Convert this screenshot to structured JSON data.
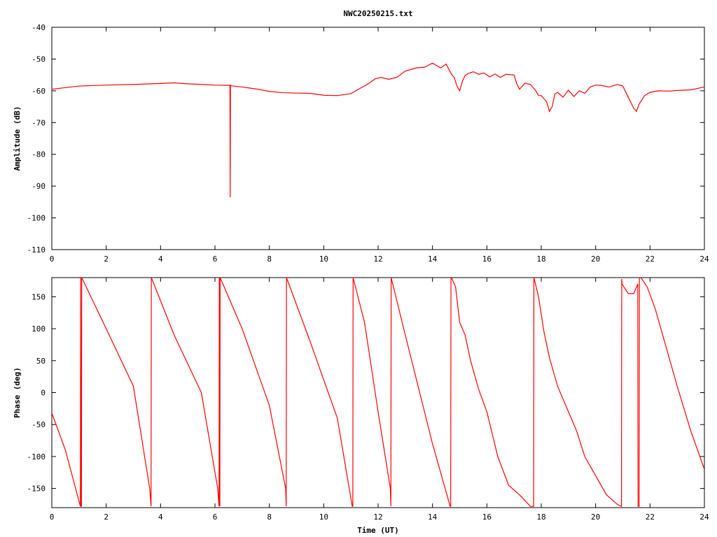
{
  "chart_data": [
    {
      "type": "line",
      "title": "NWC20250215.txt",
      "xlabel": "",
      "ylabel": "Amplitude (dB)",
      "xlim": [
        0,
        24
      ],
      "ylim": [
        -110,
        -40
      ],
      "xticks": [
        "0",
        "2",
        "4",
        "6",
        "8",
        "10",
        "12",
        "14",
        "16",
        "18",
        "20",
        "22",
        "24"
      ],
      "yticks": [
        "-40",
        "-50",
        "-60",
        "-70",
        "-80",
        "-90",
        "-100",
        "-110"
      ],
      "series_color": "#ff0000",
      "series": [
        {
          "x": [
            0,
            0.5,
            1.0,
            2.0,
            3.0,
            4.0,
            4.5,
            5.0,
            5.5,
            6.0,
            6.5,
            6.55,
            6.56,
            6.57,
            6.58,
            7.0,
            7.5,
            8.0,
            8.5,
            9.0,
            9.5,
            10.0,
            10.5,
            11.0,
            11.3,
            11.6,
            11.9,
            12.1,
            12.4,
            12.7,
            13.0,
            13.4,
            13.7,
            14.0,
            14.3,
            14.5,
            14.7,
            14.8,
            14.9,
            15.0,
            15.1,
            15.2,
            15.3,
            15.5,
            15.7,
            15.9,
            16.1,
            16.3,
            16.5,
            16.7,
            17.0,
            17.1,
            17.2,
            17.4,
            17.6,
            17.8,
            17.9,
            18.0,
            18.2,
            18.3,
            18.4,
            18.5,
            18.6,
            18.8,
            19.0,
            19.2,
            19.4,
            19.6,
            19.8,
            20.0,
            20.2,
            20.5,
            20.8,
            21.0,
            21.2,
            21.4,
            21.5,
            21.6,
            21.8,
            22.0,
            22.3,
            22.7,
            23.0,
            23.5,
            24.0
          ],
          "y": [
            -59.5,
            -59,
            -58.5,
            -58.2,
            -58,
            -57.7,
            -57.5,
            -57.8,
            -58,
            -58.2,
            -58.3,
            -58.3,
            -93.5,
            -58.3,
            -58.4,
            -58.8,
            -59.4,
            -60.2,
            -60.6,
            -60.7,
            -60.8,
            -61.4,
            -61.5,
            -60.9,
            -59.4,
            -58,
            -56.2,
            -55.8,
            -56.4,
            -55.7,
            -53.8,
            -52.8,
            -52.6,
            -51.3,
            -52.8,
            -51.6,
            -54.8,
            -55.8,
            -58.5,
            -60,
            -57,
            -55.2,
            -54.6,
            -54,
            -54.8,
            -54.4,
            -55.6,
            -54.7,
            -55.8,
            -54.8,
            -55,
            -57.8,
            -59.5,
            -57.6,
            -58,
            -60,
            -61.5,
            -61.5,
            -63.5,
            -66.5,
            -65,
            -61,
            -60.5,
            -62,
            -59.8,
            -61.8,
            -60,
            -60.8,
            -58.8,
            -58.2,
            -58.3,
            -58.8,
            -58,
            -58.5,
            -62,
            -65.5,
            -66.5,
            -64.2,
            -61.5,
            -60.5,
            -60,
            -60.1,
            -59.9,
            -59.7,
            -58.8
          ]
        }
      ]
    },
    {
      "type": "line",
      "title": "",
      "xlabel": "Time (UT)",
      "ylabel": "Phase (deg)",
      "xlim": [
        0,
        24
      ],
      "ylim": [
        -180,
        180
      ],
      "xticks": [
        "0",
        "2",
        "4",
        "6",
        "8",
        "10",
        "12",
        "14",
        "16",
        "18",
        "20",
        "22",
        "24"
      ],
      "yticks": [
        "150",
        "100",
        "50",
        "0",
        "-50",
        "-100",
        "-150"
      ],
      "series_color": "#ff0000",
      "series": [
        {
          "x": [
            0,
            0.5,
            1.05,
            1.06,
            1.07,
            1.09,
            1.1,
            2.0,
            3.0,
            3.6,
            3.65,
            3.66,
            4.5,
            5.5,
            6.1,
            6.15,
            6.16,
            6.18,
            6.19,
            7.0,
            8.0,
            8.6,
            8.62,
            8.63,
            9.5,
            10.5,
            11.05,
            11.07,
            11.08,
            11.5,
            12.0,
            12.45,
            12.47,
            12.48,
            13.0,
            14.0,
            14.65,
            14.67,
            14.68,
            14.7,
            14.85,
            15.0,
            15.2,
            15.4,
            15.7,
            16.0,
            16.4,
            16.8,
            17.2,
            17.6,
            17.7,
            17.72,
            17.73,
            17.9,
            18.1,
            18.3,
            18.6,
            19.0,
            19.3,
            19.6,
            20.0,
            20.4,
            20.8,
            20.95,
            20.96,
            20.97,
            21.2,
            21.4,
            21.55,
            21.56,
            21.6,
            21.61,
            21.62,
            21.65,
            21.7,
            21.9,
            22.2,
            22.6,
            23.0,
            23.5,
            24.0
          ],
          "y": [
            -32,
            -90,
            -178,
            180,
            -178,
            -178,
            180,
            100,
            10,
            -150,
            -178,
            180,
            90,
            0,
            -150,
            -178,
            180,
            -178,
            180,
            100,
            -20,
            -150,
            -178,
            180,
            80,
            -40,
            -178,
            -178,
            180,
            110,
            -30,
            -150,
            -178,
            180,
            90,
            -80,
            -178,
            -178,
            180,
            180,
            165,
            110,
            90,
            50,
            5,
            -30,
            -100,
            -145,
            -160,
            -178,
            -178,
            -178,
            180,
            150,
            95,
            55,
            10,
            -30,
            -60,
            -100,
            -130,
            -160,
            -175,
            -178,
            178,
            170,
            155,
            155,
            170,
            -178,
            -178,
            178,
            180,
            180,
            178,
            165,
            130,
            70,
            10,
            -60,
            -120
          ]
        }
      ]
    }
  ]
}
